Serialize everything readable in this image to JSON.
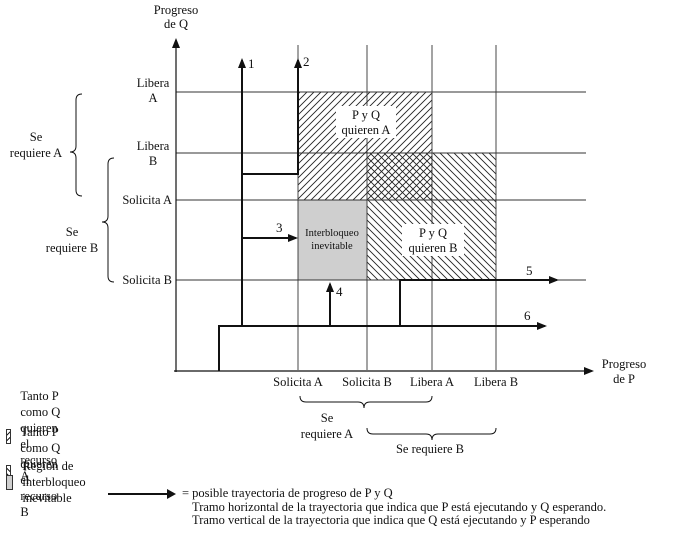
{
  "axes": {
    "y_label_line1": "Progreso",
    "y_label_line2": "de Q",
    "x_label_line1": "Progreso",
    "x_label_line2": "de P"
  },
  "y_ticks": {
    "libera_a_line1": "Libera",
    "libera_a_line2": "A",
    "libera_b_line1": "Libera",
    "libera_b_line2": "B",
    "solicita_a": "Solicita A",
    "solicita_b": "Solicita B"
  },
  "x_ticks": [
    "Solicita A",
    "Solicita B",
    "Libera A",
    "Libera B"
  ],
  "brackets": {
    "se_requiere_a_y_line1": "Se",
    "se_requiere_a_y_line2": "requiere A",
    "se_requiere_b_y_line1": "Se",
    "se_requiere_b_y_line2": "requiere B",
    "se_requiere_a_x_line1": "Se",
    "se_requiere_a_x_line2": "requiere A",
    "se_requiere_b_x": "Se requiere B"
  },
  "regions": {
    "pq_quieren_a_line1": "P y Q",
    "pq_quieren_a_line2": "quieren A",
    "pq_quieren_b_line1": "P y Q",
    "pq_quieren_b_line2": "quieren B",
    "interbloqueo_line1": "Interbloqueo",
    "interbloqueo_line2": "inevitable"
  },
  "path_labels": [
    "1",
    "2",
    "3",
    "4",
    "5",
    "6"
  ],
  "legend": {
    "hatch_a": "Tanto P como Q quieren el recurso A",
    "hatch_b": "Tanto P como Q quieren el recurso B",
    "gray": "Región de interbloqueo inevitable",
    "path_line1": "= posible trayectoria de progreso de P y Q",
    "path_line2": "Tramo horizontal de la trayectoria que indica que P está ejecutando y Q esperando.",
    "path_line3": "Tramo vertical de la trayectoria que indica que Q está ejecutando y P esperando"
  },
  "colors": {
    "ink": "#111111",
    "deadlock_gray": "#cfcfcf",
    "grid": "#333333"
  }
}
